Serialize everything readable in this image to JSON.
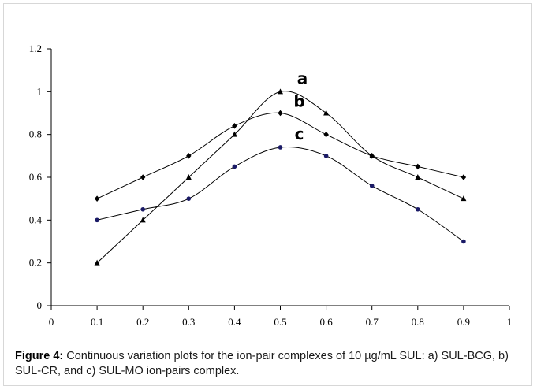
{
  "chart_data": {
    "type": "line",
    "x": [
      0.1,
      0.2,
      0.3,
      0.4,
      0.5,
      0.6,
      0.7,
      0.8,
      0.9
    ],
    "xlim": [
      0,
      1
    ],
    "ylim": [
      0,
      1.2
    ],
    "xticks": [
      "0",
      "0.1",
      "0.2",
      "0.3",
      "0.4",
      "0.5",
      "0.6",
      "0.7",
      "0.8",
      "0.9",
      "1"
    ],
    "yticks": [
      "0",
      "0.2",
      "0.4",
      "0.6",
      "0.8",
      "1",
      "1.2"
    ],
    "grid": false,
    "legend": "inline labels at curve peaks",
    "series": [
      {
        "name": "a",
        "marker": "triangle",
        "values": [
          0.2,
          0.4,
          0.6,
          0.8,
          1.0,
          0.9,
          0.7,
          0.6,
          0.5
        ]
      },
      {
        "name": "b",
        "marker": "diamond",
        "values": [
          0.5,
          0.6,
          0.7,
          0.84,
          0.9,
          0.8,
          0.7,
          0.65,
          0.6
        ]
      },
      {
        "name": "c",
        "marker": "circle",
        "values": [
          0.4,
          0.45,
          0.5,
          0.65,
          0.74,
          0.7,
          0.56,
          0.45,
          0.3
        ]
      }
    ],
    "line_color": "#000000",
    "marker_color_a": "#000000",
    "marker_color_b": "#000000",
    "marker_color_c": "#1a1a66"
  },
  "caption": {
    "label": "Figure 4:",
    "text": " Continuous variation plots for the ion-pair complexes of 10 µg/mL SUL: a) SUL-BCG, b) SUL-CR, and c) SUL-MO ion-pairs complex."
  }
}
